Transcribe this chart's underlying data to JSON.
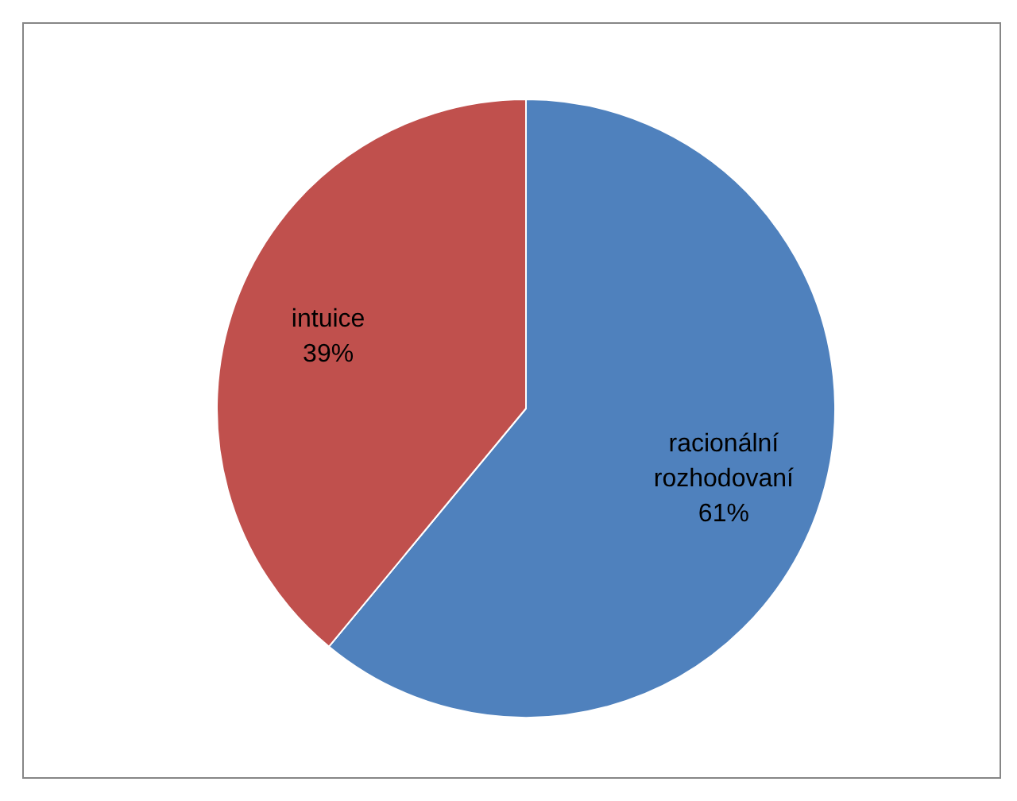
{
  "chart_data": {
    "type": "pie",
    "categories": [
      "racionální rozhodovaní",
      "intuice"
    ],
    "values": [
      61,
      39
    ],
    "colors": [
      "#4f81bd",
      "#c0504d"
    ],
    "value_labels": [
      "61%",
      "39%"
    ],
    "legend": false
  }
}
